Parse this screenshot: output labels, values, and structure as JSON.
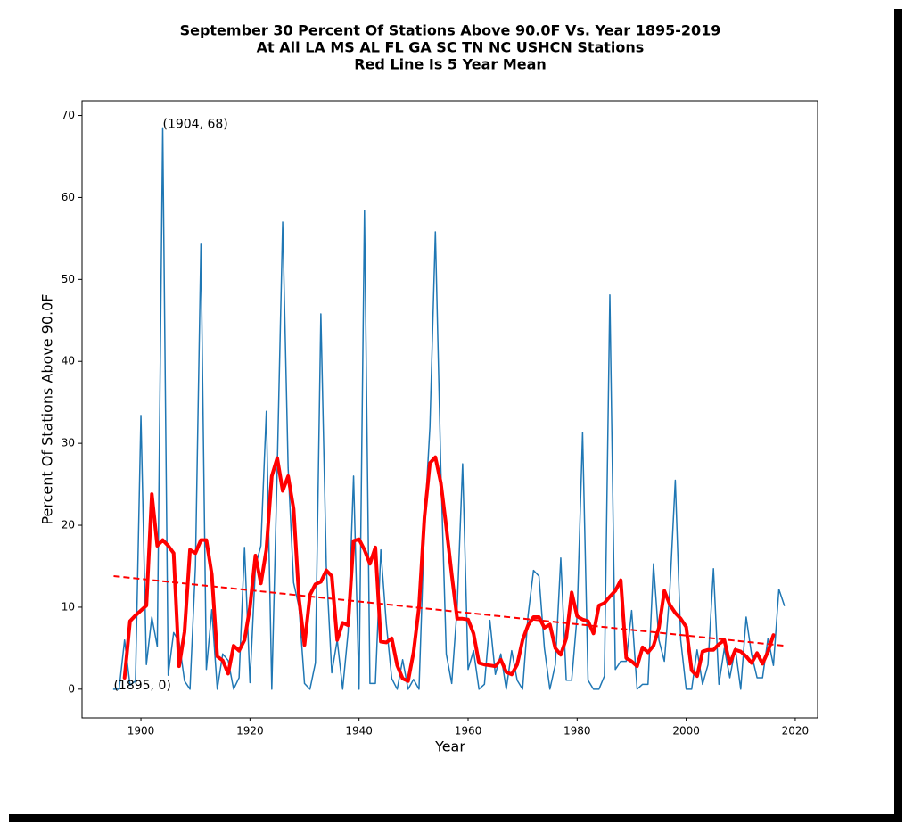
{
  "chart_data": {
    "type": "line",
    "title": [
      "September 30 Percent Of Stations Above 90.0F Vs. Year 1895-2019",
      "At All LA MS AL FL GA SC TN NC USHCN Stations",
      "Red Line Is 5 Year Mean"
    ],
    "xlabel": "Year",
    "ylabel": "Percent Of Stations Above 90.0F",
    "xlim": [
      1889.2,
      2024.1
    ],
    "ylim": [
      -3.5,
      71.8
    ],
    "xticks": [
      1900,
      1920,
      1940,
      1960,
      1980,
      2000,
      2020
    ],
    "yticks": [
      0,
      10,
      20,
      30,
      40,
      50,
      60,
      70
    ],
    "series": [
      {
        "color": "#1f77b4",
        "width": 1.5,
        "dashed": false,
        "x": [
          1895,
          1896,
          1897,
          1898,
          1899,
          1900,
          1901,
          1902,
          1903,
          1904,
          1905,
          1906,
          1907,
          1908,
          1909,
          1910,
          1911,
          1912,
          1913,
          1914,
          1915,
          1916,
          1917,
          1918,
          1919,
          1920,
          1921,
          1922,
          1923,
          1924,
          1925,
          1926,
          1927,
          1928,
          1929,
          1930,
          1931,
          1932,
          1933,
          1934,
          1935,
          1936,
          1937,
          1938,
          1939,
          1940,
          1941,
          1942,
          1943,
          1944,
          1945,
          1946,
          1947,
          1948,
          1949,
          1950,
          1951,
          1952,
          1953,
          1954,
          1955,
          1956,
          1957,
          1958,
          1959,
          1960,
          1961,
          1962,
          1963,
          1964,
          1965,
          1966,
          1967,
          1968,
          1969,
          1970,
          1971,
          1972,
          1973,
          1974,
          1975,
          1976,
          1977,
          1978,
          1979,
          1980,
          1981,
          1982,
          1983,
          1984,
          1985,
          1986,
          1987,
          1988,
          1989,
          1990,
          1991,
          1992,
          1993,
          1994,
          1995,
          1996,
          1997,
          1998,
          1999,
          2000,
          2001,
          2002,
          2003,
          2004,
          2005,
          2006,
          2007,
          2008,
          2009,
          2010,
          2011,
          2012,
          2013,
          2014,
          2015,
          2016,
          2017,
          2018
        ],
        "values": [
          0,
          0,
          6,
          0.5,
          1,
          33.4,
          3,
          8.8,
          5.2,
          68.5,
          1.7,
          6.9,
          5.8,
          1,
          0,
          15,
          54.3,
          2.4,
          9.7,
          0,
          4.3,
          3.5,
          0,
          1.4,
          17.3,
          0.8,
          15,
          17.5,
          33.9,
          0,
          27,
          57,
          27,
          13,
          10,
          0.7,
          0,
          3.2,
          45.8,
          15,
          2,
          6,
          0,
          7,
          26,
          0,
          58.4,
          0.7,
          0.7,
          17,
          8,
          1.3,
          0,
          3.6,
          0,
          1.2,
          0,
          20,
          32,
          55.8,
          27,
          4.3,
          0.7,
          10,
          27.5,
          2.4,
          4.7,
          0,
          0.6,
          8.4,
          1.8,
          4.3,
          0,
          4.7,
          1.1,
          0,
          9,
          14.5,
          13.8,
          5,
          0,
          3,
          16,
          1.1,
          1.1,
          9,
          31.3,
          1.1,
          0,
          0,
          1.6,
          48.1,
          2.4,
          3.4,
          3.4,
          9.6,
          0,
          0.6,
          0.6,
          15.3,
          6,
          3.4,
          12,
          25.5,
          6,
          0,
          0,
          4.8,
          0.6,
          3,
          14.7,
          0.6,
          5,
          1.4,
          5,
          0,
          8.8,
          4.2,
          1.4,
          1.4,
          6.2,
          2.9,
          12.2,
          10.2
        ]
      },
      {
        "color": "#ff0000",
        "width": 4,
        "dashed": false,
        "x": [
          1897,
          1898,
          1899,
          1900,
          1901,
          1902,
          1903,
          1904,
          1905,
          1906,
          1907,
          1908,
          1909,
          1910,
          1911,
          1912,
          1913,
          1914,
          1915,
          1916,
          1917,
          1918,
          1919,
          1920,
          1921,
          1922,
          1923,
          1924,
          1925,
          1926,
          1927,
          1928,
          1929,
          1930,
          1931,
          1932,
          1933,
          1934,
          1935,
          1936,
          1937,
          1938,
          1939,
          1940,
          1941,
          1942,
          1943,
          1944,
          1945,
          1946,
          1947,
          1948,
          1949,
          1950,
          1951,
          1952,
          1953,
          1954,
          1955,
          1956,
          1957,
          1958,
          1959,
          1960,
          1961,
          1962,
          1963,
          1964,
          1965,
          1966,
          1967,
          1968,
          1969,
          1970,
          1971,
          1972,
          1973,
          1974,
          1975,
          1976,
          1977,
          1978,
          1979,
          1980,
          1981,
          1982,
          1983,
          1984,
          1985,
          1986,
          1987,
          1988,
          1989,
          1990,
          1991,
          1992,
          1993,
          1994,
          1995,
          1996,
          1997,
          1998,
          1999,
          2000,
          2001,
          2002,
          2003,
          2004,
          2005,
          2006,
          2007,
          2008,
          2009,
          2010,
          2011,
          2012,
          2013,
          2014,
          2015,
          2016
        ],
        "values": [
          1.4,
          8.3,
          9,
          9.6,
          10.2,
          23.8,
          17.5,
          18.2,
          17.5,
          16.6,
          2.8,
          7,
          17,
          16.6,
          18.2,
          18.2,
          14,
          4,
          3.5,
          1.9,
          5.3,
          4.7,
          6,
          10,
          16.3,
          12.9,
          17,
          26,
          28.2,
          24.2,
          26,
          22,
          11,
          5.4,
          11.5,
          12.8,
          13.1,
          14.5,
          13.8,
          6,
          8.1,
          7.8,
          18.1,
          18.3,
          17,
          15.3,
          17.3,
          5.8,
          5.7,
          6.2,
          2.9,
          1.3,
          1,
          4.5,
          10,
          21,
          27.6,
          28.3,
          25.2,
          19.8,
          14,
          8.6,
          8.6,
          8.5,
          6.8,
          3.2,
          3,
          2.9,
          2.8,
          3.6,
          2.1,
          1.8,
          3,
          6,
          7.8,
          8.8,
          8.8,
          7.5,
          7.9,
          5,
          4.2,
          6.2,
          11.8,
          8.9,
          8.5,
          8.3,
          6.8,
          10.2,
          10.5,
          11.3,
          12,
          13.3,
          3.8,
          3.4,
          2.8,
          5.1,
          4.5,
          5.3,
          7.5,
          12,
          10.3,
          9.3,
          8.6,
          7.6,
          2.3,
          1.6,
          4.6,
          4.8,
          4.8,
          5.5,
          6,
          3.1,
          4.8,
          4.6,
          4,
          3.2,
          4.4,
          3.1,
          4.6,
          6.6
        ]
      },
      {
        "color": "#ff0000",
        "width": 2,
        "dashed": true,
        "x": [
          1895,
          2018
        ],
        "values": [
          13.8,
          5.3
        ]
      }
    ],
    "annotations": [
      {
        "text": "(1904, 68)",
        "x": 1904,
        "y": 68.5
      },
      {
        "text": "(1895, 0)",
        "x": 1895,
        "y": 0
      }
    ]
  }
}
